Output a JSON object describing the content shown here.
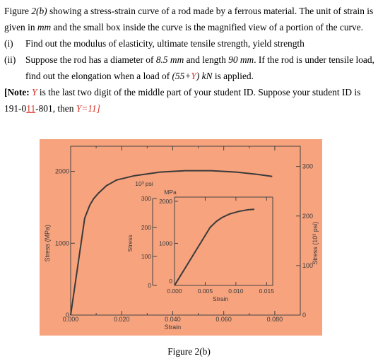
{
  "problem": {
    "intro": {
      "t1": "Figure ",
      "fig": "2(b)",
      "t2": " showing a stress-strain curve of a rod made by a ferrous material. The unit of strain is given in ",
      "mm": "mm",
      "t3": " and the small box inside the curve is the magnified view of a portion of the curve."
    },
    "item1": {
      "num": "(i)",
      "text": "Find out the modulus of elasticity, ultimate tensile strength, yield strength"
    },
    "item2": {
      "num": "(ii)",
      "t1": "Suppose the rod has a diameter of ",
      "diameter": "8.5 mm",
      "t2": " and length ",
      "length": "90 mm",
      "t3": ". If the rod is under tensile load, find out the elongation when a load of ",
      "load_open": "(55+",
      "load_y": "Y",
      "load_close": ") kN",
      "t4": " is applied."
    },
    "note": {
      "label": "[Note: ",
      "y": "Y",
      "t1": " is the last two digit of the middle part of your student ID. Suppose your student ID is 191-0",
      "digits": "11",
      "t2": "-801, then ",
      "y_eq": "Y=11]"
    }
  },
  "figure_caption": "Figure 2(b)",
  "colors": {
    "panel_background": "#f7a37e",
    "curve": "#3a3a3a",
    "axis": "#444444",
    "highlight": "#d6342c"
  },
  "chart_data": [
    {
      "type": "line",
      "name": "main",
      "xlabel": "Strain",
      "ylabel": "Stress (MPa)",
      "y2label": "Stress (10³ psi)",
      "xlim": [
        0,
        0.09
      ],
      "ylim": [
        0,
        2350
      ],
      "x_ticks": [
        "0.000",
        "0.020",
        "0.040",
        "0.060",
        "0.080"
      ],
      "x_tick_values": [
        0,
        0.02,
        0.04,
        0.06,
        0.08
      ],
      "y_ticks": [
        "0",
        "1000",
        "2000"
      ],
      "y_tick_values": [
        0,
        1000,
        2000
      ],
      "y2_ticks": [
        "0",
        "100",
        "200",
        "300"
      ],
      "y2_tick_values": [
        0,
        100,
        200,
        300
      ],
      "series": [
        {
          "x": [
            0,
            0.0055,
            0.0075,
            0.009,
            0.011,
            0.014,
            0.018,
            0.025,
            0.035,
            0.045,
            0.055,
            0.065,
            0.073,
            0.079
          ],
          "y": [
            0,
            1350,
            1530,
            1620,
            1700,
            1800,
            1880,
            1940,
            1990,
            2010,
            2010,
            1990,
            1960,
            1930
          ]
        }
      ]
    },
    {
      "type": "line",
      "name": "inset",
      "xlabel": "Strain",
      "ylabel": "Stress",
      "xlim": [
        0,
        0.016
      ],
      "ylim": [
        0,
        2100
      ],
      "x_ticks": [
        "0.000",
        "0.005",
        "0.010",
        "0.015"
      ],
      "x_tick_values": [
        0,
        0.005,
        0.01,
        0.015
      ],
      "y_ticks": [
        "0",
        "1000",
        "2000"
      ],
      "y_tick_values": [
        0,
        1000,
        2000
      ],
      "y_units": "MPa",
      "y2_ticks": [
        "0",
        "100",
        "200",
        "300"
      ],
      "y2_tick_values": [
        0,
        100,
        200,
        300
      ],
      "y2_units": "10³ psi",
      "series": [
        {
          "x": [
            0,
            0.0058,
            0.0068,
            0.0078,
            0.009,
            0.0105,
            0.012,
            0.013
          ],
          "y": [
            0,
            1380,
            1520,
            1620,
            1700,
            1760,
            1800,
            1810
          ]
        }
      ]
    }
  ]
}
